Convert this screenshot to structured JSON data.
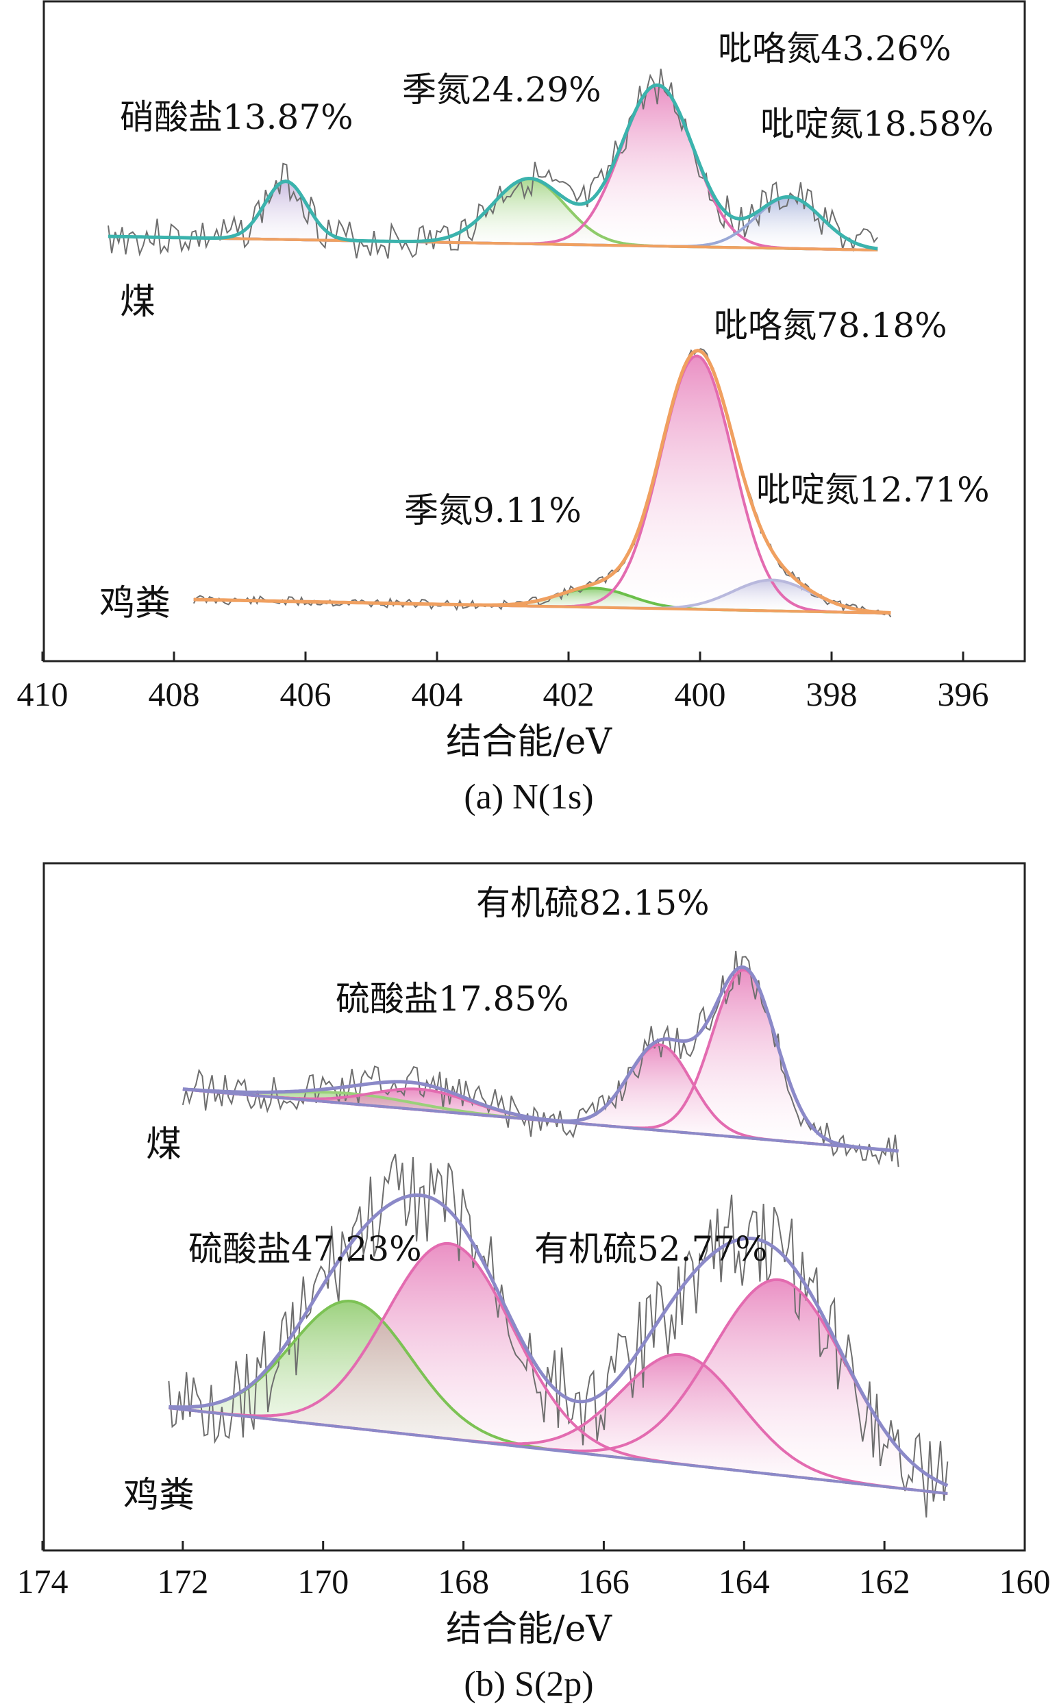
{
  "chart_data": [
    {
      "type": "line",
      "subtitle": "(a) N(1s)",
      "xlabel": "结合能/eV",
      "ylabel": "",
      "xlim": [
        410,
        395
      ],
      "x_reversed": true,
      "xticks": [
        410,
        408,
        406,
        404,
        402,
        400,
        398,
        396
      ],
      "grid": false,
      "series": [
        {
          "name": "煤",
          "raw_x": [
            409.0,
            408.0,
            407.0,
            406.3,
            405.5,
            404.5,
            403.5,
            402.6,
            401.8,
            401.2,
            400.6,
            400.0,
            399.3,
            398.7,
            398.2,
            397.7,
            397.3
          ],
          "raw_y": [
            0.22,
            0.2,
            0.21,
            0.27,
            0.2,
            0.19,
            0.21,
            0.27,
            0.31,
            0.45,
            0.52,
            0.45,
            0.23,
            0.26,
            0.24,
            0.21,
            0.19
          ],
          "components": [
            {
              "label": "硝酸盐",
              "percent": "13.87%",
              "center": 406.3,
              "color": "#b9a6d6"
            },
            {
              "label": "季氮",
              "percent": "24.29%",
              "center": 402.6,
              "color": "#8fcb6a"
            },
            {
              "label": "吡咯氮",
              "percent": "43.26%",
              "center": 400.7,
              "color": "#e36bb0"
            },
            {
              "label": "吡啶氮",
              "percent": "18.58%",
              "center": 398.7,
              "color": "#9aa8d6"
            }
          ]
        },
        {
          "name": "鸡粪",
          "raw_x": [
            407.7,
            406.0,
            404.0,
            402.5,
            401.6,
            400.8,
            400.0,
            399.2,
            398.5,
            397.8,
            397.1
          ],
          "raw_y": [
            0.02,
            0.01,
            0.01,
            0.02,
            0.06,
            0.3,
            0.78,
            0.4,
            0.1,
            0.03,
            0.01
          ],
          "components": [
            {
              "label": "季氮",
              "percent": "9.11%",
              "center": 401.6,
              "color": "#6bbf4a"
            },
            {
              "label": "吡咯氮",
              "percent": "78.18%",
              "center": 400.0,
              "color": "#e36bb0"
            },
            {
              "label": "吡啶氮",
              "percent": "12.71%",
              "center": 398.8,
              "color": "#b8b8dd"
            }
          ]
        }
      ],
      "annotations": [
        {
          "text": "硝酸盐13.87%"
        },
        {
          "text": "季氮24.29%"
        },
        {
          "text": "吡咯氮43.26%"
        },
        {
          "text": "吡啶氮18.58%"
        },
        {
          "text": "吡咯氮78.18%"
        },
        {
          "text": "季氮9.11%"
        },
        {
          "text": "吡啶氮12.71%"
        }
      ]
    },
    {
      "type": "line",
      "subtitle": "(b) S(2p)",
      "xlabel": "结合能/eV",
      "ylabel": "",
      "xlim": [
        174,
        160
      ],
      "x_reversed": true,
      "xticks": [
        174,
        172,
        170,
        168,
        166,
        164,
        162,
        160
      ],
      "grid": false,
      "series": [
        {
          "name": "煤",
          "raw_x": [
            172.0,
            171.0,
            170.0,
            169.0,
            168.0,
            167.0,
            166.0,
            165.2,
            164.6,
            164.0,
            163.3,
            162.5,
            161.8
          ],
          "raw_y": [
            0.2,
            0.21,
            0.22,
            0.23,
            0.21,
            0.19,
            0.21,
            0.42,
            0.38,
            0.58,
            0.22,
            0.18,
            0.17
          ],
          "components": [
            {
              "label": "硫酸盐",
              "percent": "17.85%",
              "center": 168.8,
              "color": "#9ad07a"
            },
            {
              "label": "有机硫",
              "percent": "82.15%",
              "center": 164.5,
              "color": "#e36bb0"
            }
          ]
        },
        {
          "name": "鸡粪",
          "raw_x": [
            172.2,
            171.0,
            170.0,
            169.0,
            168.2,
            167.0,
            166.0,
            165.0,
            164.0,
            163.0,
            162.2,
            161.5,
            161.1
          ],
          "raw_y": [
            0.18,
            0.22,
            0.32,
            0.38,
            0.4,
            0.3,
            0.22,
            0.28,
            0.36,
            0.34,
            0.22,
            0.15,
            0.18
          ],
          "components": [
            {
              "label": "硫酸盐",
              "percent": "47.23%",
              "center": 168.8,
              "color": "#7cc254"
            },
            {
              "label": "有机硫",
              "percent": "52.77%",
              "center": 164.3,
              "color": "#e36bb0"
            }
          ]
        }
      ],
      "annotations": [
        {
          "text": "有机硫82.15%"
        },
        {
          "text": "硫酸盐17.85%"
        },
        {
          "text": "硫酸盐47.23%"
        },
        {
          "text": "有机硫52.77%"
        }
      ]
    }
  ]
}
